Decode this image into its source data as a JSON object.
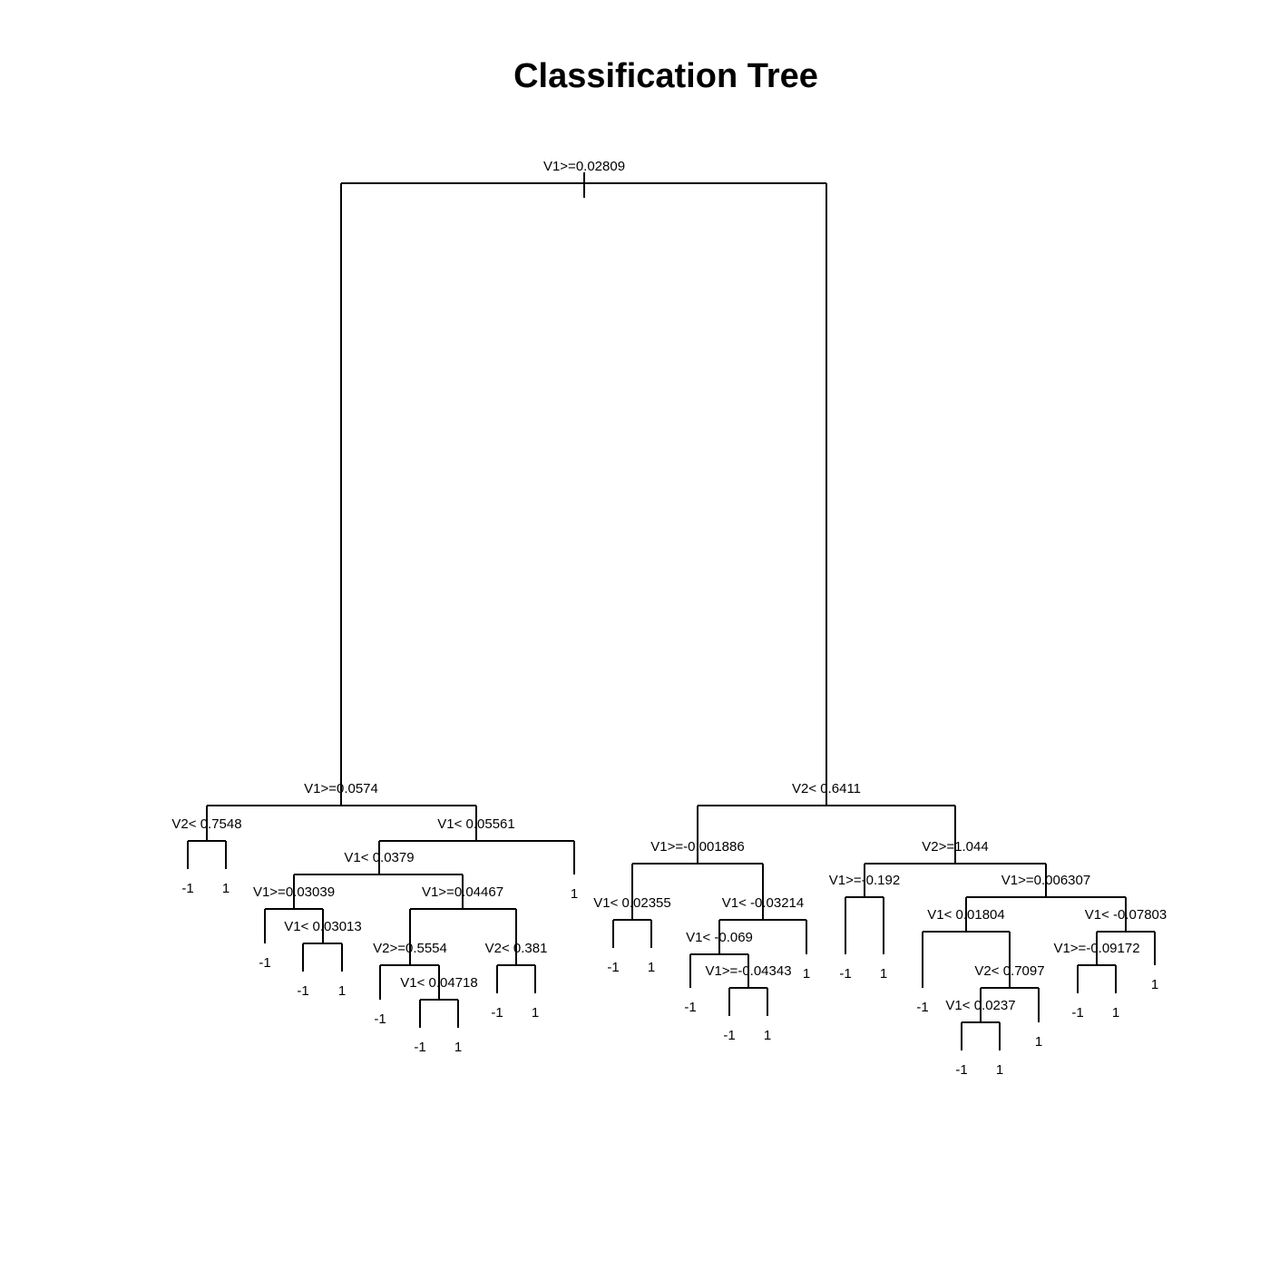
{
  "title": "Classification Tree",
  "tree": {
    "split": "V1>=0.02809",
    "left": {
      "split": "V1>=0.0574",
      "left": {
        "split": "V2< 0.7548",
        "left": {
          "leaf": "-1"
        },
        "right": {
          "leaf": "1"
        }
      },
      "right": {
        "split": "V1< 0.05561",
        "left": {
          "split": "V1< 0.0379",
          "left": {
            "split": "V1>=0.03039",
            "left": {
              "leaf": "-1"
            },
            "right": {
              "split": "V1< 0.03013",
              "left": {
                "leaf": "-1"
              },
              "right": {
                "leaf": "1"
              }
            }
          },
          "right": {
            "split": "V1>=0.04467",
            "left": {
              "split": "V2>=0.5554",
              "left": {
                "leaf": "-1"
              },
              "right": {
                "split": "V1< 0.04718",
                "left": {
                  "leaf": "-1"
                },
                "right": {
                  "leaf": "1"
                }
              }
            },
            "right": {
              "split": "V2< 0.381",
              "left": {
                "leaf": "-1"
              },
              "right": {
                "leaf": "1"
              }
            }
          }
        },
        "right": {
          "leaf": "1"
        }
      }
    },
    "right": {
      "split": "V2< 0.6411",
      "left": {
        "split": "V1>=-0.001886",
        "left": {
          "split": "V1< 0.02355",
          "left": {
            "leaf": "-1"
          },
          "right": {
            "leaf": "1"
          }
        },
        "right": {
          "split": "V1< -0.03214",
          "left": {
            "split": "V1< -0.069",
            "left": {
              "leaf": "-1"
            },
            "right": {
              "split": "V1>=-0.04343",
              "left": {
                "leaf": "-1"
              },
              "right": {
                "leaf": "1"
              }
            }
          },
          "right": {
            "leaf": "1"
          }
        }
      },
      "right": {
        "split": "V2>=1.044",
        "left": {
          "split": "V1>=-0.192",
          "left": {
            "leaf": "-1"
          },
          "right": {
            "leaf": "1"
          }
        },
        "right": {
          "split": "V1>=0.006307",
          "left": {
            "split": "V1< 0.01804",
            "left": {
              "leaf": "-1"
            },
            "right": {
              "split": "V2< 0.7097",
              "left": {
                "split": "V1< 0.0237",
                "left": {
                  "leaf": "-1"
                },
                "right": {
                  "leaf": "1"
                }
              },
              "right": {
                "leaf": "1"
              }
            }
          },
          "right": {
            "split": "V1< -0.07803",
            "left": {
              "split": "V1>=-0.09172",
              "left": {
                "leaf": "-1"
              },
              "right": {
                "leaf": "1"
              }
            },
            "right": {
              "leaf": "1"
            }
          }
        }
      }
    }
  }
}
